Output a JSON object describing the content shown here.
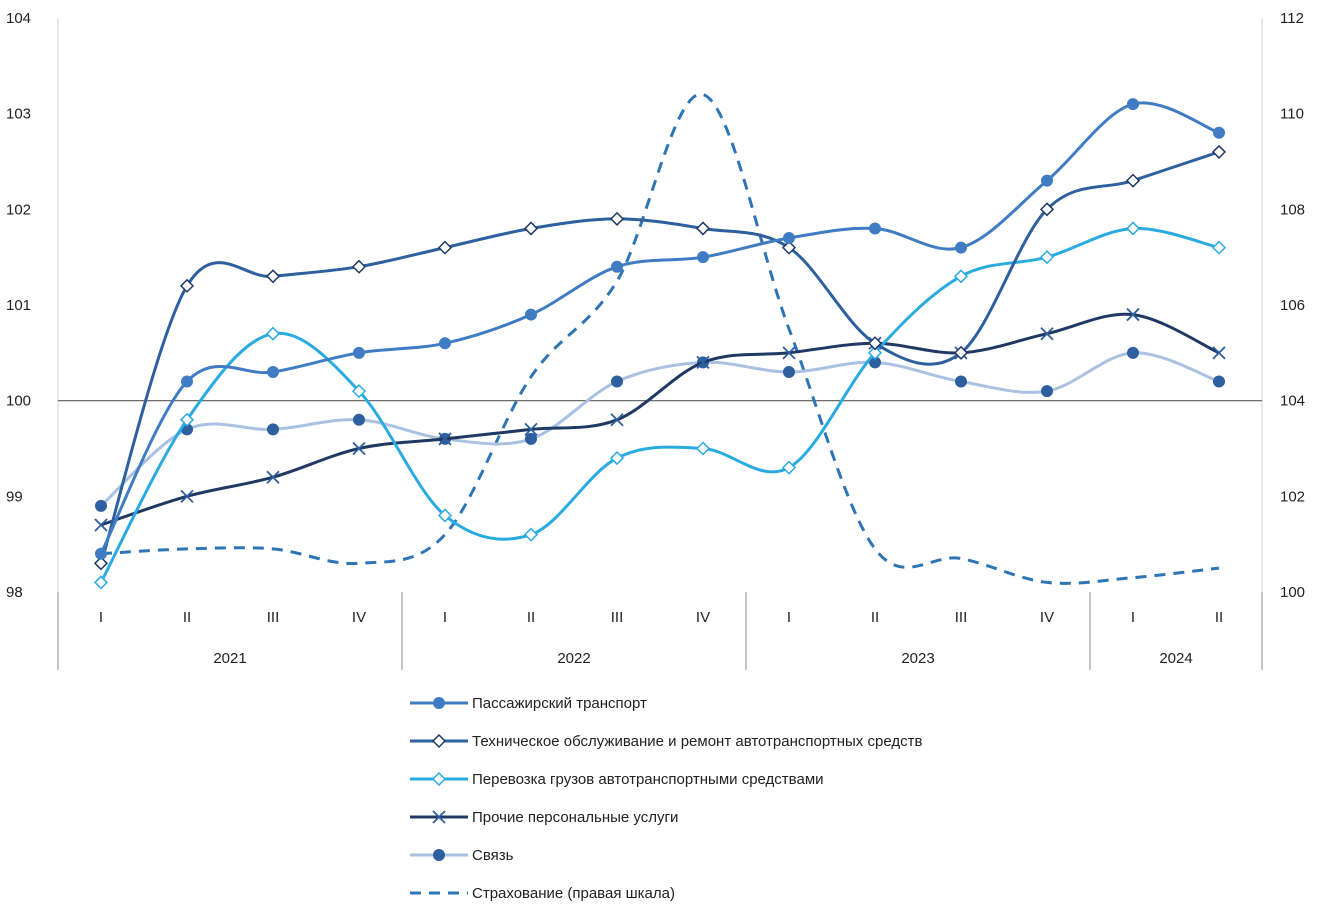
{
  "chart_data": {
    "type": "line",
    "categories": [
      "I",
      "II",
      "III",
      "IV",
      "I",
      "II",
      "III",
      "IV",
      "I",
      "II",
      "III",
      "IV",
      "I",
      "II"
    ],
    "year_groups": [
      {
        "label": "2021",
        "count": 4
      },
      {
        "label": "2022",
        "count": 4
      },
      {
        "label": "2023",
        "count": 4
      },
      {
        "label": "2024",
        "count": 2
      }
    ],
    "ylim_left": [
      98,
      104
    ],
    "yticks_left": [
      "98",
      "99",
      "100",
      "101",
      "102",
      "103",
      "104"
    ],
    "ylim_right": [
      100,
      112
    ],
    "yticks_right": [
      "100",
      "102",
      "104",
      "106",
      "108",
      "110",
      "112"
    ],
    "reference_line": 100,
    "series": [
      {
        "name": "Пассажирский транспорт",
        "axis": "left",
        "color": "#3f7cc4",
        "marker": "circle",
        "dash": false,
        "values": [
          98.4,
          100.2,
          100.3,
          100.5,
          100.6,
          100.9,
          101.4,
          101.5,
          101.7,
          101.8,
          101.6,
          102.3,
          103.1,
          102.8
        ]
      },
      {
        "name": "Техническое обслуживание и ремонт автотранспортных средств",
        "axis": "left",
        "color": "#2e5f9e",
        "marker": "diamond",
        "dash": false,
        "values": [
          98.3,
          101.2,
          101.3,
          101.4,
          101.6,
          101.8,
          101.9,
          101.8,
          101.6,
          100.6,
          100.5,
          102.0,
          102.3,
          102.6
        ]
      },
      {
        "name": "Перевозка грузов автотранспортными средствами",
        "axis": "left",
        "color": "#29abe2",
        "marker": "diamond-open",
        "dash": false,
        "values": [
          98.1,
          99.8,
          100.7,
          100.1,
          98.8,
          98.6,
          99.4,
          99.5,
          99.3,
          100.5,
          101.3,
          101.5,
          101.8,
          101.6
        ]
      },
      {
        "name": "Прочие персональные услуги",
        "axis": "left",
        "color": "#1f3864",
        "marker": "x",
        "dash": false,
        "values": [
          98.7,
          99.0,
          99.2,
          99.5,
          99.6,
          99.7,
          99.8,
          100.4,
          100.5,
          100.6,
          100.5,
          100.7,
          100.9,
          100.5
        ]
      },
      {
        "name": "Связь",
        "axis": "left",
        "color": "#a9c1e2",
        "marker": "circle-dark",
        "dash": false,
        "values": [
          98.9,
          99.7,
          99.7,
          99.8,
          99.6,
          99.6,
          100.2,
          100.4,
          100.3,
          100.4,
          100.2,
          100.1,
          100.5,
          100.2
        ]
      },
      {
        "name": "Страхование (правая шкала)",
        "axis": "right",
        "color": "#2e75b6",
        "marker": "none",
        "dash": true,
        "values": [
          100.8,
          100.9,
          100.9,
          100.6,
          101.2,
          104.5,
          106.5,
          110.4,
          105.5,
          100.9,
          100.7,
          100.2,
          100.3,
          100.5
        ]
      }
    ]
  }
}
